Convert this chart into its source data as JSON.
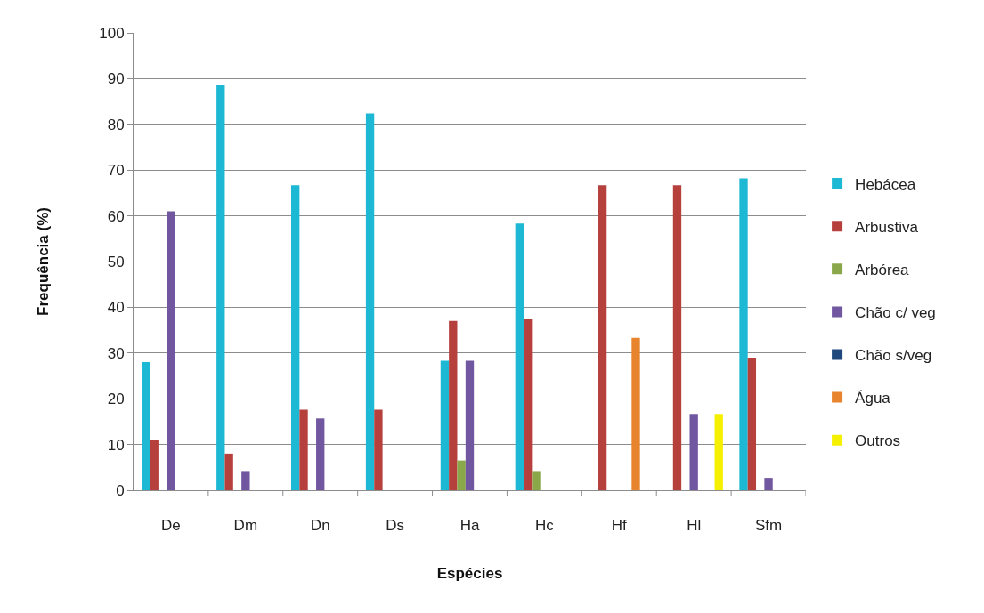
{
  "chart_data": {
    "type": "bar",
    "xlabel": "Espécies",
    "ylabel": "Frequência (%)",
    "categories": [
      "De",
      "Dm",
      "Dn",
      "Ds",
      "Ha",
      "Hc",
      "Hf",
      "Hl",
      "Sfm"
    ],
    "series": [
      {
        "name": "Hebácea",
        "color": "#1cb8d4",
        "values": [
          28,
          88.5,
          66.7,
          82.4,
          28.3,
          58.3,
          null,
          null,
          68.2
        ]
      },
      {
        "name": "Arbustiva",
        "color": "#b5403c",
        "values": [
          11,
          8,
          17.6,
          17.6,
          37,
          37.5,
          66.7,
          66.7,
          29
        ]
      },
      {
        "name": "Arbórea",
        "color": "#8aa84a",
        "values": [
          null,
          null,
          null,
          null,
          6.5,
          4.2,
          null,
          null,
          null
        ]
      },
      {
        "name": "Chão c/ veg",
        "color": "#7156a0",
        "values": [
          61,
          4.2,
          15.7,
          null,
          28.3,
          null,
          null,
          16.7,
          2.7
        ]
      },
      {
        "name": "Chão s/veg",
        "color": "#1f497d",
        "values": [
          null,
          null,
          null,
          null,
          null,
          null,
          null,
          null,
          null
        ]
      },
      {
        "name": "Água",
        "color": "#e8832e",
        "values": [
          null,
          null,
          null,
          null,
          null,
          null,
          33.3,
          null,
          null
        ]
      },
      {
        "name": "Outros",
        "color": "#f5f000",
        "values": [
          null,
          null,
          null,
          null,
          null,
          null,
          null,
          16.7,
          null
        ]
      }
    ],
    "ylim": [
      0,
      100
    ],
    "yticks": [
      0,
      10,
      20,
      30,
      40,
      50,
      60,
      70,
      80,
      90,
      100
    ],
    "grid": "y",
    "legend": "right"
  }
}
